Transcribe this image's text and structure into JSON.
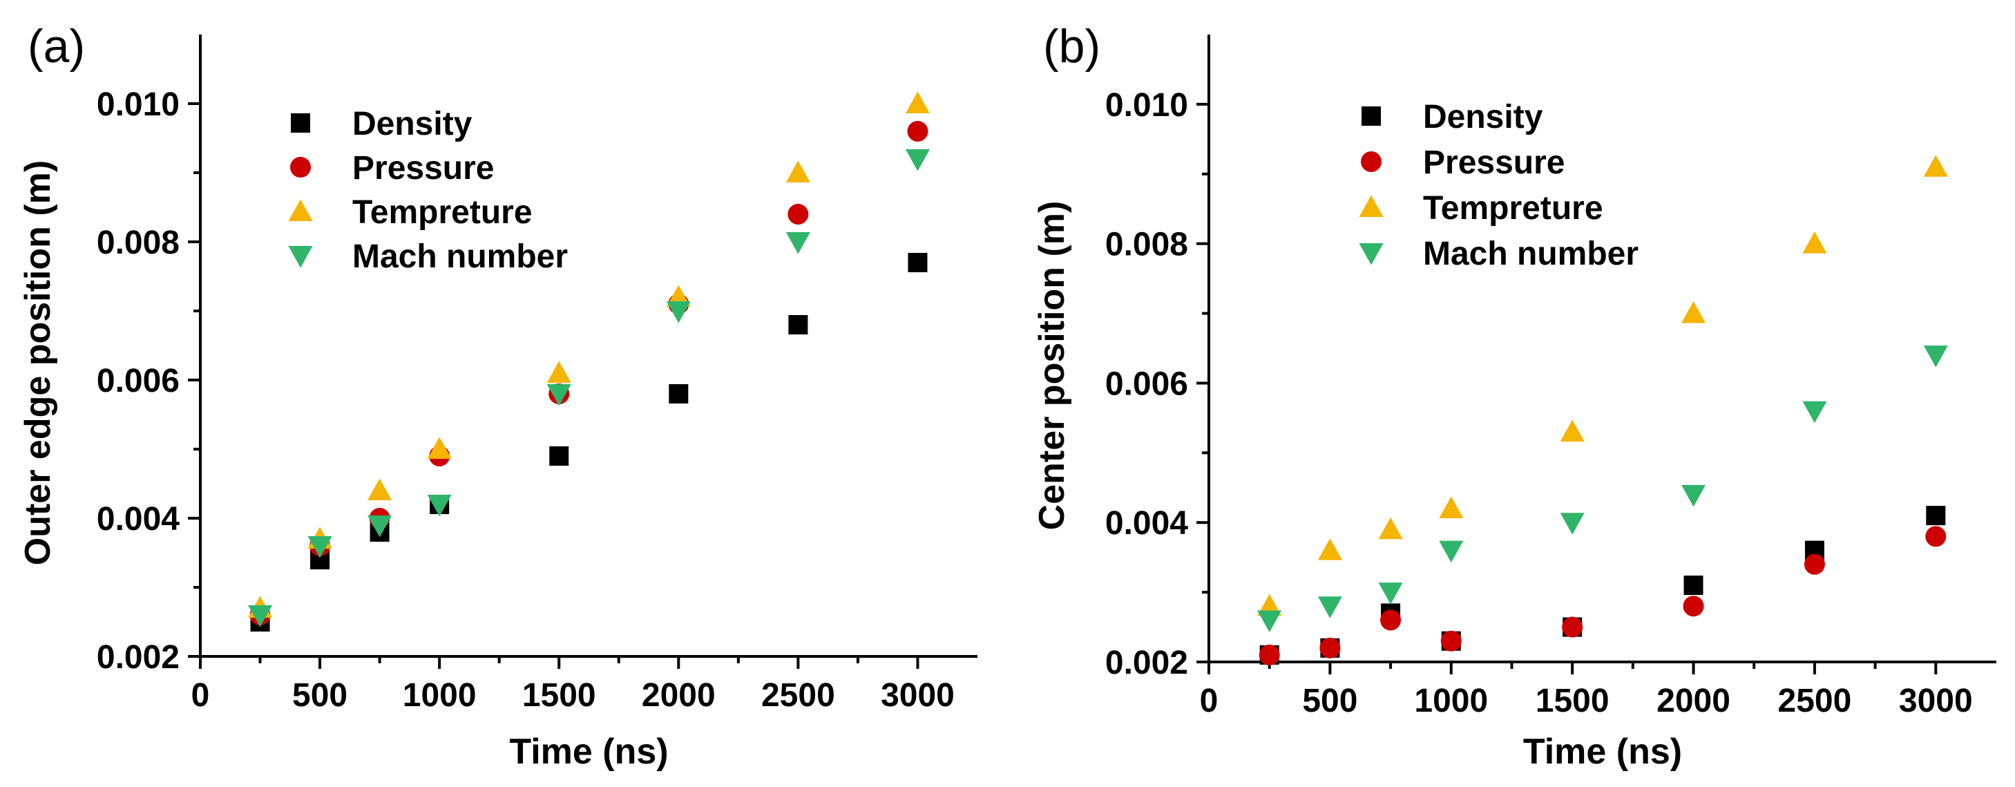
{
  "colors": {
    "Density": "#000000",
    "Pressure": "#cc0000",
    "Tempreture": "#f5b400",
    "Mach number": "#2fb56a"
  },
  "chart_data": [
    {
      "panel": "(a)",
      "type": "scatter",
      "xlabel": "Time (ns)",
      "ylabel": "Outer edge position (m)",
      "xlim": [
        0,
        3250
      ],
      "ylim": [
        0.002,
        0.011
      ],
      "xticks": [
        0,
        500,
        1000,
        1500,
        2000,
        2500,
        3000
      ],
      "xtick_labels": [
        "0",
        "500",
        "1000",
        "1500",
        "2000",
        "2500",
        "3000"
      ],
      "yticks": [
        0.002,
        0.004,
        0.006,
        0.008,
        0.01
      ],
      "ytick_labels": [
        "0.002",
        "0.004",
        "0.006",
        "0.008",
        "0.010"
      ],
      "legend": "top-left",
      "x": [
        250,
        500,
        750,
        1000,
        1500,
        2000,
        2500,
        3000
      ],
      "series": [
        {
          "name": "Density",
          "marker": "square",
          "values": [
            0.0025,
            0.0034,
            0.0038,
            0.0042,
            0.0049,
            0.0058,
            0.0068,
            0.0077
          ]
        },
        {
          "name": "Pressure",
          "marker": "circle",
          "values": [
            0.0026,
            0.0036,
            0.004,
            0.0049,
            0.0058,
            0.0071,
            0.0084,
            0.0096
          ]
        },
        {
          "name": "Tempreture",
          "marker": "triangle-up",
          "values": [
            0.0027,
            0.0037,
            0.0044,
            0.005,
            0.0061,
            0.0072,
            0.009,
            0.01
          ]
        },
        {
          "name": "Mach number",
          "marker": "triangle-down",
          "values": [
            0.0026,
            0.0036,
            0.0039,
            0.0042,
            0.0058,
            0.007,
            0.008,
            0.0092
          ]
        }
      ]
    },
    {
      "panel": "(b)",
      "type": "scatter",
      "xlabel": "Time (ns)",
      "ylabel": "Center position (m)",
      "xlim": [
        0,
        3250
      ],
      "ylim": [
        0.002,
        0.011
      ],
      "xticks": [
        0,
        500,
        1000,
        1500,
        2000,
        2500,
        3000
      ],
      "xtick_labels": [
        "0",
        "500",
        "1000",
        "1500",
        "2000",
        "2500",
        "3000"
      ],
      "yticks": [
        0.002,
        0.004,
        0.006,
        0.008,
        0.01
      ],
      "ytick_labels": [
        "0.002",
        "0.004",
        "0.006",
        "0.008",
        "0.010"
      ],
      "legend": "top-left",
      "x": [
        250,
        500,
        750,
        1000,
        1500,
        2000,
        2500,
        3000
      ],
      "series": [
        {
          "name": "Density",
          "marker": "square",
          "values": [
            0.0021,
            0.0022,
            0.0027,
            0.0023,
            0.0025,
            0.0031,
            0.0036,
            0.0041
          ]
        },
        {
          "name": "Pressure",
          "marker": "circle",
          "values": [
            0.0021,
            0.0022,
            0.0026,
            0.0023,
            0.0025,
            0.0028,
            0.0034,
            0.0038
          ]
        },
        {
          "name": "Tempreture",
          "marker": "triangle-up",
          "values": [
            0.0028,
            0.0036,
            0.0039,
            0.0042,
            0.0053,
            0.007,
            0.008,
            0.0091
          ]
        },
        {
          "name": "Mach number",
          "marker": "triangle-down",
          "values": [
            0.0026,
            0.0028,
            0.003,
            0.0036,
            0.004,
            0.0044,
            0.0056,
            0.0064
          ]
        }
      ]
    }
  ]
}
